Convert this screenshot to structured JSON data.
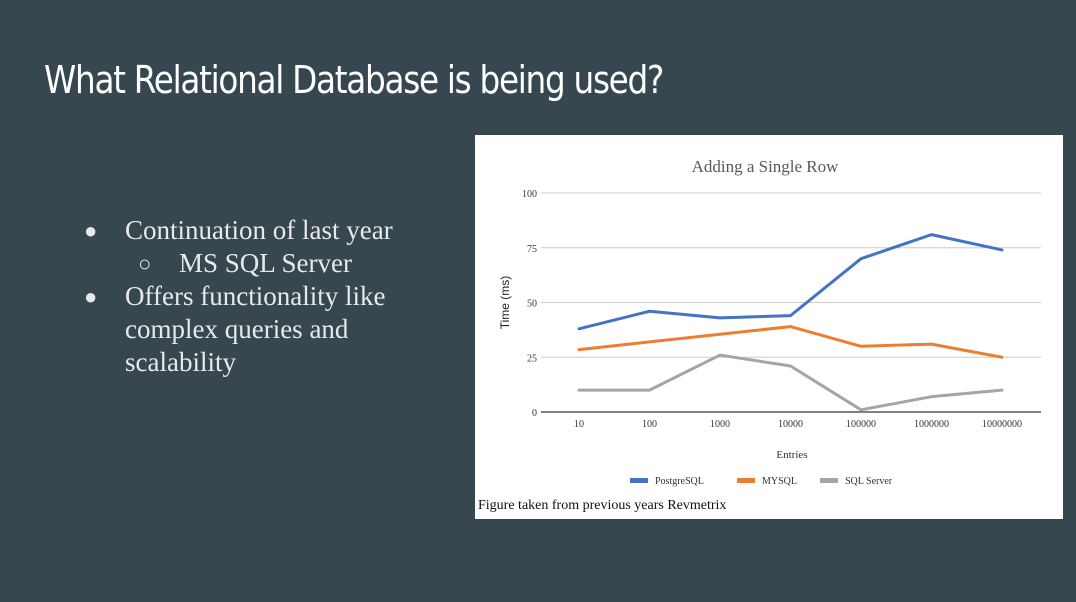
{
  "slide": {
    "title": "What Relational Database is being used?",
    "bullets": [
      {
        "text": "Continuation of last year",
        "sub": [
          "MS SQL Server"
        ]
      },
      {
        "text": "Offers functionality like complex queries and scalability",
        "sub": []
      }
    ],
    "caption": "Figure taken from previous years Revmetrix"
  },
  "chart_data": {
    "type": "line",
    "title": "Adding a Single Row",
    "xlabel": "Entries",
    "ylabel": "Time (ms)",
    "categories": [
      "10",
      "100",
      "1000",
      "10000",
      "100000",
      "1000000",
      "10000000"
    ],
    "ylim": [
      0,
      100
    ],
    "yticks": [
      0,
      25,
      50,
      75,
      100
    ],
    "grid": true,
    "legend_position": "bottom",
    "series": [
      {
        "name": "PostgreSQL",
        "color": "#4472c4",
        "values": [
          38,
          46,
          43,
          44,
          70,
          81,
          74
        ]
      },
      {
        "name": "MYSQL",
        "color": "#ed7d31",
        "values": [
          28.5,
          32,
          35.5,
          39,
          30,
          31,
          25
        ]
      },
      {
        "name": "SQL Server",
        "color": "#a5a5a5",
        "values": [
          10,
          10,
          26,
          21,
          1,
          7,
          10
        ]
      }
    ]
  }
}
